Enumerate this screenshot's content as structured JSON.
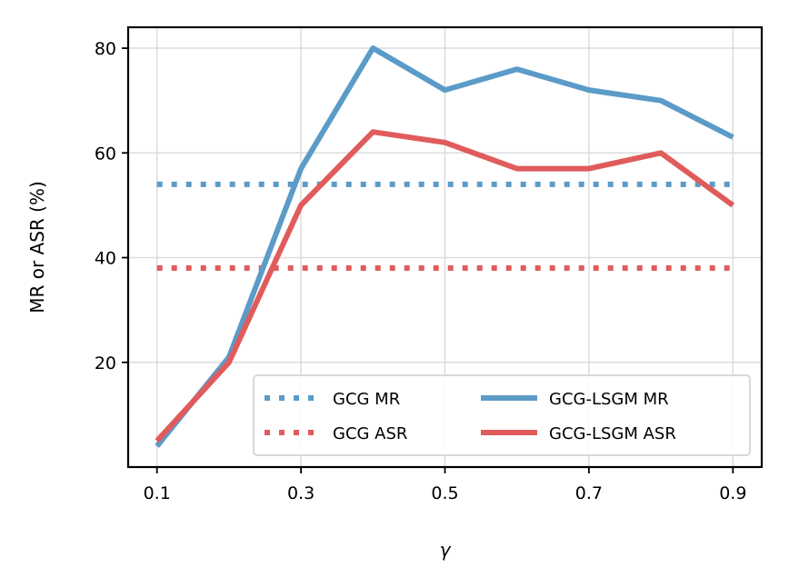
{
  "chart_data": {
    "type": "line",
    "xlabel": "γ",
    "ylabel": "MR or ASR (%)",
    "x": [
      0.1,
      0.2,
      0.3,
      0.4,
      0.5,
      0.6,
      0.7,
      0.8,
      0.9
    ],
    "xticks": [
      "0.1",
      "0.3",
      "0.5",
      "0.7",
      "0.9"
    ],
    "yticks": [
      "20",
      "40",
      "60",
      "80"
    ],
    "xlim": [
      0.06,
      0.94
    ],
    "ylim": [
      0,
      84
    ],
    "grid": true,
    "legend_position": "lower-right",
    "series": [
      {
        "name": "GCG MR",
        "style": "dotted",
        "color": "#5b9bc8",
        "x": [
          0.1,
          0.9
        ],
        "values": [
          54,
          54
        ]
      },
      {
        "name": "GCG ASR",
        "style": "dotted",
        "color": "#e05c5c",
        "x": [
          0.1,
          0.9
        ],
        "values": [
          38,
          38
        ]
      },
      {
        "name": "GCG-LSGM MR",
        "style": "solid",
        "color": "#5b9bc8",
        "x": [
          0.1,
          0.2,
          0.3,
          0.4,
          0.5,
          0.6,
          0.7,
          0.8,
          0.9
        ],
        "values": [
          4,
          21,
          57,
          80,
          72,
          76,
          72,
          70,
          63
        ]
      },
      {
        "name": "GCG-LSGM ASR",
        "style": "solid",
        "color": "#e05c5c",
        "x": [
          0.1,
          0.2,
          0.3,
          0.4,
          0.5,
          0.6,
          0.7,
          0.8,
          0.9
        ],
        "values": [
          5,
          20,
          50,
          64,
          62,
          57,
          57,
          60,
          50
        ]
      }
    ]
  }
}
